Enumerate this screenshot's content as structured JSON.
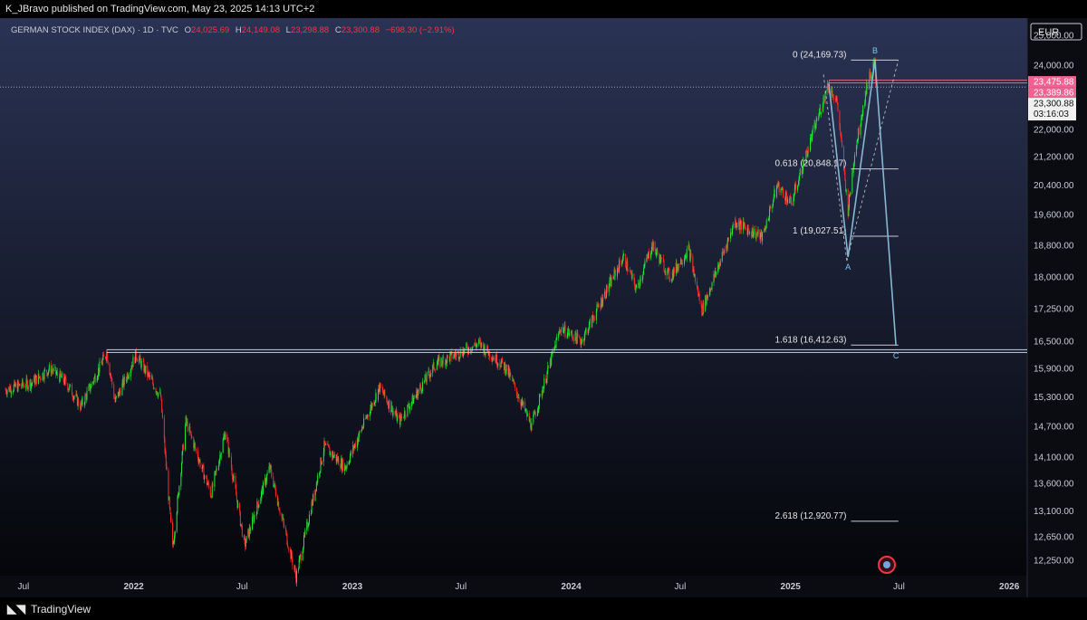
{
  "header": {
    "published": "K_JBravo published on TradingView.com, May 23, 2025 14:13 UTC+2"
  },
  "legend": {
    "symbol": "GERMAN STOCK INDEX (DAX) · 1D · TVC",
    "open_label": "O",
    "open_value": "24,025.69",
    "high_label": "H",
    "high_value": "24,149.08",
    "low_label": "L",
    "low_value": "23,298.88",
    "close_label": "C",
    "close_value": "23,300.88",
    "change": "−698.30 (−2.91%)",
    "color_down": "#f23645"
  },
  "currency_badge": "EUR",
  "footer": {
    "brand": "TradingView"
  },
  "colors": {
    "background_top": "#2a3354",
    "background_bottom": "#05060a",
    "candle_up": "#22e635",
    "candle_down": "#ff2a2a",
    "wave_line": "#87b7d1",
    "support_line": "#c3d3e8",
    "resistance_line": "#e06b8c",
    "price_badge_pink": "#f06292"
  },
  "chart_data": {
    "type": "candlestick",
    "title": "GERMAN STOCK INDEX (DAX)",
    "y_scale": "log",
    "ylim": [
      12000,
      25400
    ],
    "y_ticks": [
      "25,000.00",
      "24,000.00",
      "22,000.00",
      "21,200.00",
      "20,400.00",
      "19,600.00",
      "18,800.00",
      "18,000.00",
      "17,250.00",
      "16,500.00",
      "15,900.00",
      "15,300.00",
      "14,700.00",
      "14,100.00",
      "13,600.00",
      "13,100.00",
      "12,650.00",
      "12,250.00"
    ],
    "x_range": [
      "2021-06-01",
      "2026-01-31"
    ],
    "x_ticks": [
      {
        "date": "2021-07-01",
        "label": "Jul"
      },
      {
        "date": "2022-01-01",
        "label": "2022"
      },
      {
        "date": "2022-07-01",
        "label": "Jul"
      },
      {
        "date": "2023-01-01",
        "label": "2023"
      },
      {
        "date": "2023-07-01",
        "label": "Jul"
      },
      {
        "date": "2024-01-01",
        "label": "2024"
      },
      {
        "date": "2024-07-01",
        "label": "Jul"
      },
      {
        "date": "2025-01-01",
        "label": "2025"
      },
      {
        "date": "2025-07-01",
        "label": "Jul"
      },
      {
        "date": "2026-01-01",
        "label": "2026"
      }
    ],
    "price_path": [
      {
        "date": "2021-06-01",
        "value": 15450
      },
      {
        "date": "2021-07-15",
        "value": 15600
      },
      {
        "date": "2021-08-15",
        "value": 15900
      },
      {
        "date": "2021-09-10",
        "value": 15600
      },
      {
        "date": "2021-10-05",
        "value": 15100
      },
      {
        "date": "2021-11-17",
        "value": 16250
      },
      {
        "date": "2021-12-01",
        "value": 15200
      },
      {
        "date": "2022-01-05",
        "value": 16200
      },
      {
        "date": "2022-02-15",
        "value": 15300
      },
      {
        "date": "2022-03-07",
        "value": 12450
      },
      {
        "date": "2022-03-29",
        "value": 14800
      },
      {
        "date": "2022-05-10",
        "value": 13400
      },
      {
        "date": "2022-06-03",
        "value": 14600
      },
      {
        "date": "2022-07-05",
        "value": 12500
      },
      {
        "date": "2022-08-16",
        "value": 13900
      },
      {
        "date": "2022-09-29",
        "value": 11980
      },
      {
        "date": "2022-11-15",
        "value": 14300
      },
      {
        "date": "2022-12-20",
        "value": 13900
      },
      {
        "date": "2023-02-15",
        "value": 15500
      },
      {
        "date": "2023-03-20",
        "value": 14800
      },
      {
        "date": "2023-05-20",
        "value": 16000
      },
      {
        "date": "2023-07-31",
        "value": 16450
      },
      {
        "date": "2023-09-15",
        "value": 15900
      },
      {
        "date": "2023-10-27",
        "value": 14700
      },
      {
        "date": "2023-12-14",
        "value": 16800
      },
      {
        "date": "2024-01-18",
        "value": 16500
      },
      {
        "date": "2024-03-28",
        "value": 18500
      },
      {
        "date": "2024-04-19",
        "value": 17700
      },
      {
        "date": "2024-05-15",
        "value": 18800
      },
      {
        "date": "2024-06-14",
        "value": 18000
      },
      {
        "date": "2024-07-15",
        "value": 18700
      },
      {
        "date": "2024-08-06",
        "value": 17200
      },
      {
        "date": "2024-09-30",
        "value": 19400
      },
      {
        "date": "2024-11-15",
        "value": 19000
      },
      {
        "date": "2024-12-10",
        "value": 20400
      },
      {
        "date": "2025-01-02",
        "value": 19900
      },
      {
        "date": "2025-03-05",
        "value": 23400
      },
      {
        "date": "2025-03-20",
        "value": 22800
      },
      {
        "date": "2025-04-07",
        "value": 19700
      },
      {
        "date": "2025-04-18",
        "value": 21300
      },
      {
        "date": "2025-05-10",
        "value": 23500
      },
      {
        "date": "2025-05-22",
        "value": 24100
      },
      {
        "date": "2025-05-23",
        "value": 23300
      }
    ],
    "fibonacci_levels": [
      {
        "label": "0 (24,169.73)",
        "value": 24169.73
      },
      {
        "label": "0.618 (20,848.17)",
        "value": 20848.17
      },
      {
        "label": "1 (19,027.51)",
        "value": 19027.51
      },
      {
        "label": "1.618 (16,412.63)",
        "value": 16412.63
      },
      {
        "label": "2.618 (12,920.77)",
        "value": 12920.77
      }
    ],
    "wave_points": [
      {
        "date": "2025-03-06",
        "value": 23400,
        "label": ""
      },
      {
        "date": "2025-04-07",
        "value": 18500,
        "label": "A"
      },
      {
        "date": "2025-05-22",
        "value": 24150,
        "label": "B"
      },
      {
        "date": "2025-06-26",
        "value": 16400,
        "label": "C"
      }
    ],
    "horizontal_lines": [
      {
        "value": 16280,
        "kind": "support"
      },
      {
        "value": 23475.88,
        "kind": "resistance"
      }
    ],
    "price_badges": [
      {
        "text": "23,475.88",
        "value": 23475.88,
        "style": "pink"
      },
      {
        "text": "23,389.86",
        "value": 23389.86,
        "style": "pink"
      },
      {
        "text": "23,300.88",
        "value": 23300.88,
        "style": "last"
      }
    ],
    "countdown": "03:16:03",
    "last_price": 23300.88
  }
}
